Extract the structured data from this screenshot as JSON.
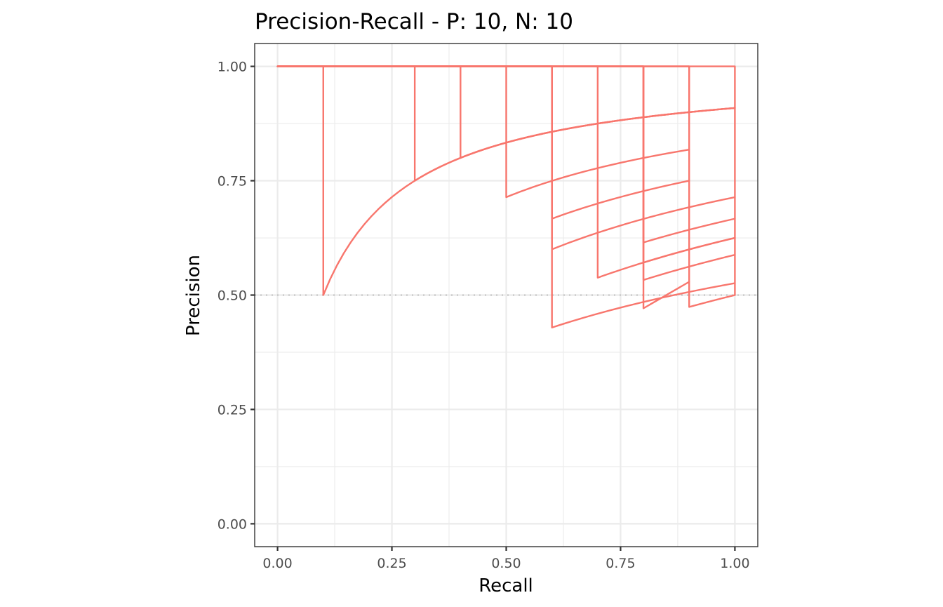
{
  "chart_data": {
    "type": "line",
    "title": "Precision-Recall - P: 10, N: 10",
    "xlabel": "Recall",
    "ylabel": "Precision",
    "xlim": [
      -0.05,
      1.05
    ],
    "ylim": [
      -0.05,
      1.05
    ],
    "x_ticks": [
      0,
      0.25,
      0.5,
      0.75,
      1
    ],
    "x_tick_labels": [
      "0.00",
      "0.25",
      "0.50",
      "0.75",
      "1.00"
    ],
    "y_ticks": [
      0,
      0.25,
      0.5,
      0.75,
      1
    ],
    "y_tick_labels": [
      "0.00",
      "0.25",
      "0.50",
      "0.75",
      "1.00"
    ],
    "grid": true,
    "baseline": 0.5,
    "positives": 10,
    "negatives": 10,
    "line_color": "#F8766D",
    "baseline_color": "#BFBFBF",
    "series": [
      {
        "values": [
          [
            0,
            1
          ],
          [
            0.1,
            1
          ],
          [
            0.1,
            0.5
          ],
          [
            1,
            0.909
          ]
        ]
      },
      {
        "values": [
          [
            0,
            1
          ],
          [
            0.3,
            1
          ],
          [
            0.3,
            0.75
          ],
          [
            1,
            0.909
          ]
        ]
      },
      {
        "values": [
          [
            0,
            1
          ],
          [
            0.4,
            1
          ],
          [
            0.4,
            0.8
          ],
          [
            1,
            0.909
          ]
        ]
      },
      {
        "values": [
          [
            0,
            1
          ],
          [
            0.5,
            1
          ],
          [
            0.5,
            0.714
          ],
          [
            0.9,
            0.818
          ]
        ]
      },
      {
        "values": [
          [
            0,
            1
          ],
          [
            0.6,
            1
          ],
          [
            0.6,
            0.667
          ],
          [
            0.9,
            0.75
          ]
        ]
      },
      {
        "values": [
          [
            0,
            1
          ],
          [
            0.6,
            1
          ],
          [
            0.6,
            0.6
          ],
          [
            1,
            0.714
          ]
        ]
      },
      {
        "values": [
          [
            0,
            1
          ],
          [
            0.6,
            1
          ],
          [
            0.6,
            0.429
          ],
          [
            1,
            0.526
          ]
        ]
      },
      {
        "values": [
          [
            0,
            1
          ],
          [
            0.7,
            1
          ],
          [
            0.7,
            0.538
          ],
          [
            1,
            0.625
          ]
        ]
      },
      {
        "values": [
          [
            0,
            1
          ],
          [
            0.8,
            1
          ],
          [
            0.8,
            0.615
          ],
          [
            1,
            0.667
          ]
        ]
      },
      {
        "values": [
          [
            0,
            1
          ],
          [
            0.8,
            1
          ],
          [
            0.8,
            0.571
          ],
          [
            1,
            0.625
          ]
        ]
      },
      {
        "values": [
          [
            0,
            1
          ],
          [
            0.8,
            1
          ],
          [
            0.8,
            0.533
          ],
          [
            1,
            0.588
          ]
        ]
      },
      {
        "values": [
          [
            0,
            1
          ],
          [
            0.8,
            1
          ],
          [
            0.8,
            0.471
          ],
          [
            0.9,
            0.529
          ]
        ]
      },
      {
        "values": [
          [
            0,
            1
          ],
          [
            0.9,
            1
          ],
          [
            0.9,
            0.9
          ]
        ]
      },
      {
        "values": [
          [
            0,
            1
          ],
          [
            0.9,
            1
          ],
          [
            0.9,
            0.474
          ],
          [
            1,
            0.5
          ]
        ]
      },
      {
        "values": [
          [
            0,
            1
          ],
          [
            1,
            1
          ],
          [
            1,
            0.5
          ]
        ]
      }
    ]
  }
}
